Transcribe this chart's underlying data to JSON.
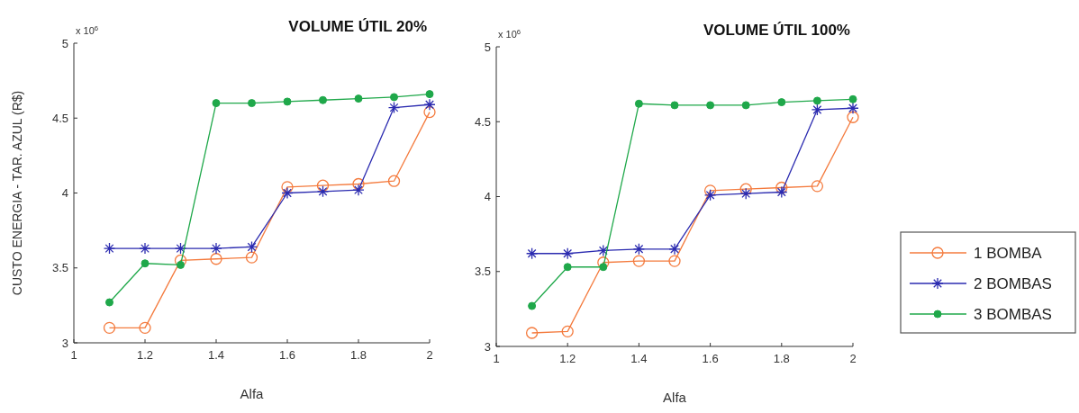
{
  "chart_data": [
    {
      "type": "line",
      "title": "VOLUME ÚTIL 20%",
      "xlabel": "Alfa",
      "ylabel": "CUSTO ENERGIA - TAR. AZUL (R$)",
      "annotations": [
        "x 10$^{6}$"
      ],
      "xlim": [
        1,
        2
      ],
      "xticks": [
        1,
        1.2,
        1.4,
        1.6,
        1.8,
        2
      ],
      "ylim": [
        3,
        5
      ],
      "yticks": [
        3,
        3.5,
        4,
        4.5,
        5
      ],
      "grid": false,
      "x": [
        1.1,
        1.2,
        1.3,
        1.4,
        1.5,
        1.6,
        1.7,
        1.8,
        1.9,
        2
      ],
      "series": [
        {
          "color": "#f47b3e",
          "marker": "circle",
          "values": [
            3.1,
            3.1,
            3.55,
            3.56,
            3.57,
            4.04,
            4.05,
            4.06,
            4.08,
            4.54
          ]
        },
        {
          "color": "#2b2bb0",
          "marker": "cross",
          "values": [
            3.63,
            3.63,
            3.63,
            3.63,
            3.64,
            4.0,
            4.01,
            4.02,
            4.57,
            4.59
          ]
        },
        {
          "color": "#1fa84a",
          "marker": "circle",
          "values": [
            3.27,
            3.53,
            3.52,
            4.6,
            4.6,
            4.61,
            4.62,
            4.63,
            4.64,
            4.66
          ]
        }
      ]
    },
    {
      "type": "line",
      "title": "VOLUME ÚTIL 100%",
      "xlabel": "Alfa",
      "annotations": [
        "x 10$^{6}$"
      ],
      "xlim": [
        1,
        2
      ],
      "xticks": [
        1,
        1.2,
        1.4,
        1.6,
        1.8,
        2
      ],
      "ylim": [
        3,
        5
      ],
      "yticks": [
        3,
        3.5,
        4,
        4.5,
        5
      ],
      "grid": false,
      "legend": "right",
      "x": [
        1.1,
        1.2,
        1.3,
        1.4,
        1.5,
        1.6,
        1.7,
        1.8,
        1.9,
        2
      ],
      "series": [
        {
          "name": "1 BOMBA",
          "color": "#f47b3e",
          "marker": "circle",
          "values": [
            3.09,
            3.1,
            3.56,
            3.57,
            3.57,
            4.04,
            4.05,
            4.06,
            4.07,
            4.53
          ]
        },
        {
          "name": "2 BOMBAS",
          "color": "#2b2bb0",
          "marker": "cross",
          "values": [
            3.62,
            3.62,
            3.64,
            3.65,
            3.65,
            4.01,
            4.02,
            4.03,
            4.58,
            4.59
          ]
        },
        {
          "name": "3 BOMBAS",
          "color": "#1fa84a",
          "marker": "circle",
          "values": [
            3.27,
            3.53,
            3.53,
            4.62,
            4.61,
            4.61,
            4.61,
            4.63,
            4.64,
            4.65
          ]
        }
      ]
    }
  ]
}
